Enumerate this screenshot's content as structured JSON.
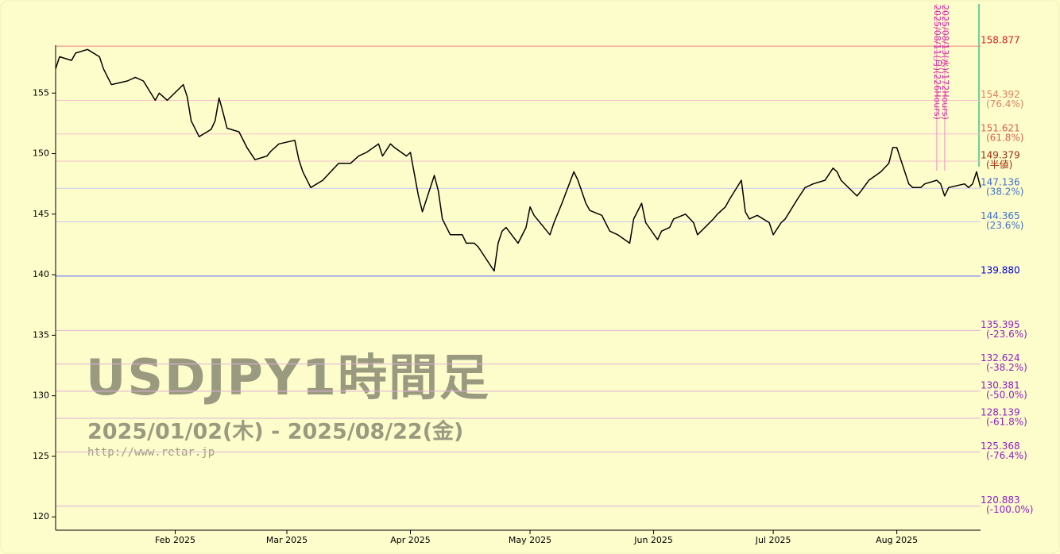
{
  "chart_data": {
    "type": "line",
    "watermark": {
      "title": "USDJPY1時間足",
      "period": "2025/01/02(木) - 2025/08/22(金)",
      "url": "http://www.retar.jp"
    },
    "x": [
      "2025-01-02",
      "2025-01-03",
      "2025-01-06",
      "2025-01-07",
      "2025-01-10",
      "2025-01-13",
      "2025-01-14",
      "2025-01-16",
      "2025-01-20",
      "2025-01-22",
      "2025-01-24",
      "2025-01-27",
      "2025-01-28",
      "2025-01-30",
      "2025-02-03",
      "2025-02-04",
      "2025-02-05",
      "2025-02-07",
      "2025-02-10",
      "2025-02-11",
      "2025-02-12",
      "2025-02-13",
      "2025-02-14",
      "2025-02-17",
      "2025-02-19",
      "2025-02-21",
      "2025-02-24",
      "2025-02-25",
      "2025-02-27",
      "2025-03-03",
      "2025-03-04",
      "2025-03-05",
      "2025-03-07",
      "2025-03-10",
      "2025-03-12",
      "2025-03-14",
      "2025-03-17",
      "2025-03-19",
      "2025-03-21",
      "2025-03-24",
      "2025-03-25",
      "2025-03-27",
      "2025-03-28",
      "2025-03-31",
      "2025-04-01",
      "2025-04-03",
      "2025-04-04",
      "2025-04-07",
      "2025-04-08",
      "2025-04-09",
      "2025-04-11",
      "2025-04-14",
      "2025-04-15",
      "2025-04-17",
      "2025-04-18",
      "2025-04-22",
      "2025-04-23",
      "2025-04-24",
      "2025-04-25",
      "2025-04-28",
      "2025-04-30",
      "2025-05-01",
      "2025-05-02",
      "2025-05-06",
      "2025-05-07",
      "2025-05-09",
      "2025-05-12",
      "2025-05-13",
      "2025-05-15",
      "2025-05-16",
      "2025-05-19",
      "2025-05-21",
      "2025-05-23",
      "2025-05-26",
      "2025-05-27",
      "2025-05-29",
      "2025-05-30",
      "2025-06-02",
      "2025-06-03",
      "2025-06-05",
      "2025-06-06",
      "2025-06-09",
      "2025-06-11",
      "2025-06-12",
      "2025-06-16",
      "2025-06-17",
      "2025-06-19",
      "2025-06-20",
      "2025-06-23",
      "2025-06-24",
      "2025-06-25",
      "2025-06-27",
      "2025-06-30",
      "2025-07-01",
      "2025-07-03",
      "2025-07-04",
      "2025-07-07",
      "2025-07-09",
      "2025-07-11",
      "2025-07-14",
      "2025-07-16",
      "2025-07-17",
      "2025-07-18",
      "2025-07-22",
      "2025-07-23",
      "2025-07-25",
      "2025-07-28",
      "2025-07-30",
      "2025-07-31",
      "2025-08-01",
      "2025-08-04",
      "2025-08-05",
      "2025-08-07",
      "2025-08-08",
      "2025-08-11",
      "2025-08-12",
      "2025-08-13",
      "2025-08-14",
      "2025-08-18",
      "2025-08-19",
      "2025-08-20",
      "2025-08-21",
      "2025-08-22"
    ],
    "values": [
      157.0,
      158.0,
      157.7,
      158.3,
      158.6,
      158.0,
      157.0,
      155.7,
      156.0,
      156.3,
      156.0,
      154.4,
      155.0,
      154.4,
      155.7,
      154.7,
      152.7,
      151.4,
      152.0,
      152.7,
      154.6,
      153.4,
      152.1,
      151.8,
      150.5,
      149.5,
      149.8,
      150.2,
      150.8,
      151.1,
      149.5,
      148.5,
      147.2,
      147.8,
      148.5,
      149.2,
      149.2,
      149.8,
      150.1,
      150.8,
      149.8,
      150.8,
      150.5,
      149.8,
      150.1,
      146.5,
      145.2,
      148.2,
      146.9,
      144.6,
      143.3,
      143.3,
      142.6,
      142.6,
      142.3,
      140.3,
      142.6,
      143.6,
      143.9,
      142.6,
      143.9,
      145.6,
      144.9,
      143.3,
      144.3,
      145.9,
      148.5,
      147.8,
      145.9,
      145.3,
      144.9,
      143.6,
      143.3,
      142.6,
      144.6,
      145.9,
      144.3,
      142.9,
      143.6,
      143.9,
      144.6,
      145.0,
      144.3,
      143.3,
      144.6,
      145.0,
      145.6,
      146.2,
      147.8,
      145.2,
      144.6,
      144.9,
      144.3,
      143.3,
      144.3,
      144.6,
      146.2,
      147.2,
      147.5,
      147.8,
      148.8,
      148.5,
      147.8,
      146.5,
      146.9,
      147.8,
      148.5,
      149.2,
      150.5,
      150.5,
      147.5,
      147.2,
      147.2,
      147.5,
      147.8,
      147.5,
      146.5,
      147.2,
      147.5,
      147.2,
      147.5,
      148.5,
      147.2
    ],
    "color": "#000000",
    "xlim": [
      "2025-01-02",
      "2025-08-22"
    ],
    "xticks": [
      {
        "value": "2025-02-01",
        "label": "Feb 2025"
      },
      {
        "value": "2025-03-01",
        "label": "Mar 2025"
      },
      {
        "value": "2025-04-01",
        "label": "Apr 2025"
      },
      {
        "value": "2025-05-01",
        "label": "May 2025"
      },
      {
        "value": "2025-06-01",
        "label": "Jun 2025"
      },
      {
        "value": "2025-07-01",
        "label": "Jul 2025"
      },
      {
        "value": "2025-08-01",
        "label": "Aug 2025"
      }
    ],
    "ylim": [
      118.9,
      158.95
    ],
    "yticks": [
      120,
      125,
      130,
      135,
      140,
      145,
      150,
      155
    ],
    "levels": [
      {
        "value": 158.877,
        "label": "158.877",
        "color": "#e02020",
        "line_color": "#f08080"
      },
      {
        "value": 154.392,
        "label": "154.392",
        "pct": "(76.4%)",
        "color": "#e08060",
        "line_color": "#f4c0c8"
      },
      {
        "value": 151.621,
        "label": "151.621",
        "pct": "(61.8%)",
        "color": "#e06050",
        "line_color": "#f4c0c8"
      },
      {
        "value": 149.379,
        "label": "149.379",
        "pct": "(半値)",
        "color": "#a03010",
        "line_color": "#f4c0c8"
      },
      {
        "value": 147.136,
        "label": "147.136",
        "pct": "(38.2%)",
        "color": "#4070d0",
        "line_color": "#c8c8f0"
      },
      {
        "value": 144.365,
        "label": "144.365",
        "pct": "(23.6%)",
        "color": "#4070d0",
        "line_color": "#c8c8f0"
      },
      {
        "value": 139.88,
        "label": "139.880",
        "color": "#0000e0",
        "line_color": "#6060ff"
      },
      {
        "value": 135.395,
        "label": "135.395",
        "pct": "(-23.6%)",
        "color": "#9020c0",
        "line_color": "#e0b0d8"
      },
      {
        "value": 132.624,
        "label": "132.624",
        "pct": "(-38.2%)",
        "color": "#9020c0",
        "line_color": "#e0b0d8"
      },
      {
        "value": 130.381,
        "label": "130.381",
        "pct": "(-50.0%)",
        "color": "#9020c0",
        "line_color": "#e0b0d8"
      },
      {
        "value": 128.139,
        "label": "128.139",
        "pct": "(-61.8%)",
        "color": "#9020c0",
        "line_color": "#e0b0d8"
      },
      {
        "value": 125.368,
        "label": "125.368",
        "pct": "(-76.4%)",
        "color": "#9020c0",
        "line_color": "#e0b0d8"
      },
      {
        "value": 120.883,
        "label": "120.883",
        "pct": "(-100.0%)",
        "color": "#9020c0",
        "line_color": "#e0b0d8"
      }
    ],
    "events": [
      {
        "date": "2025-08-11",
        "label": "2025/08/11(月)(226Hours)"
      },
      {
        "date": "2025-08-13",
        "label": "2025/08/13(水)(172Hours)"
      }
    ]
  }
}
